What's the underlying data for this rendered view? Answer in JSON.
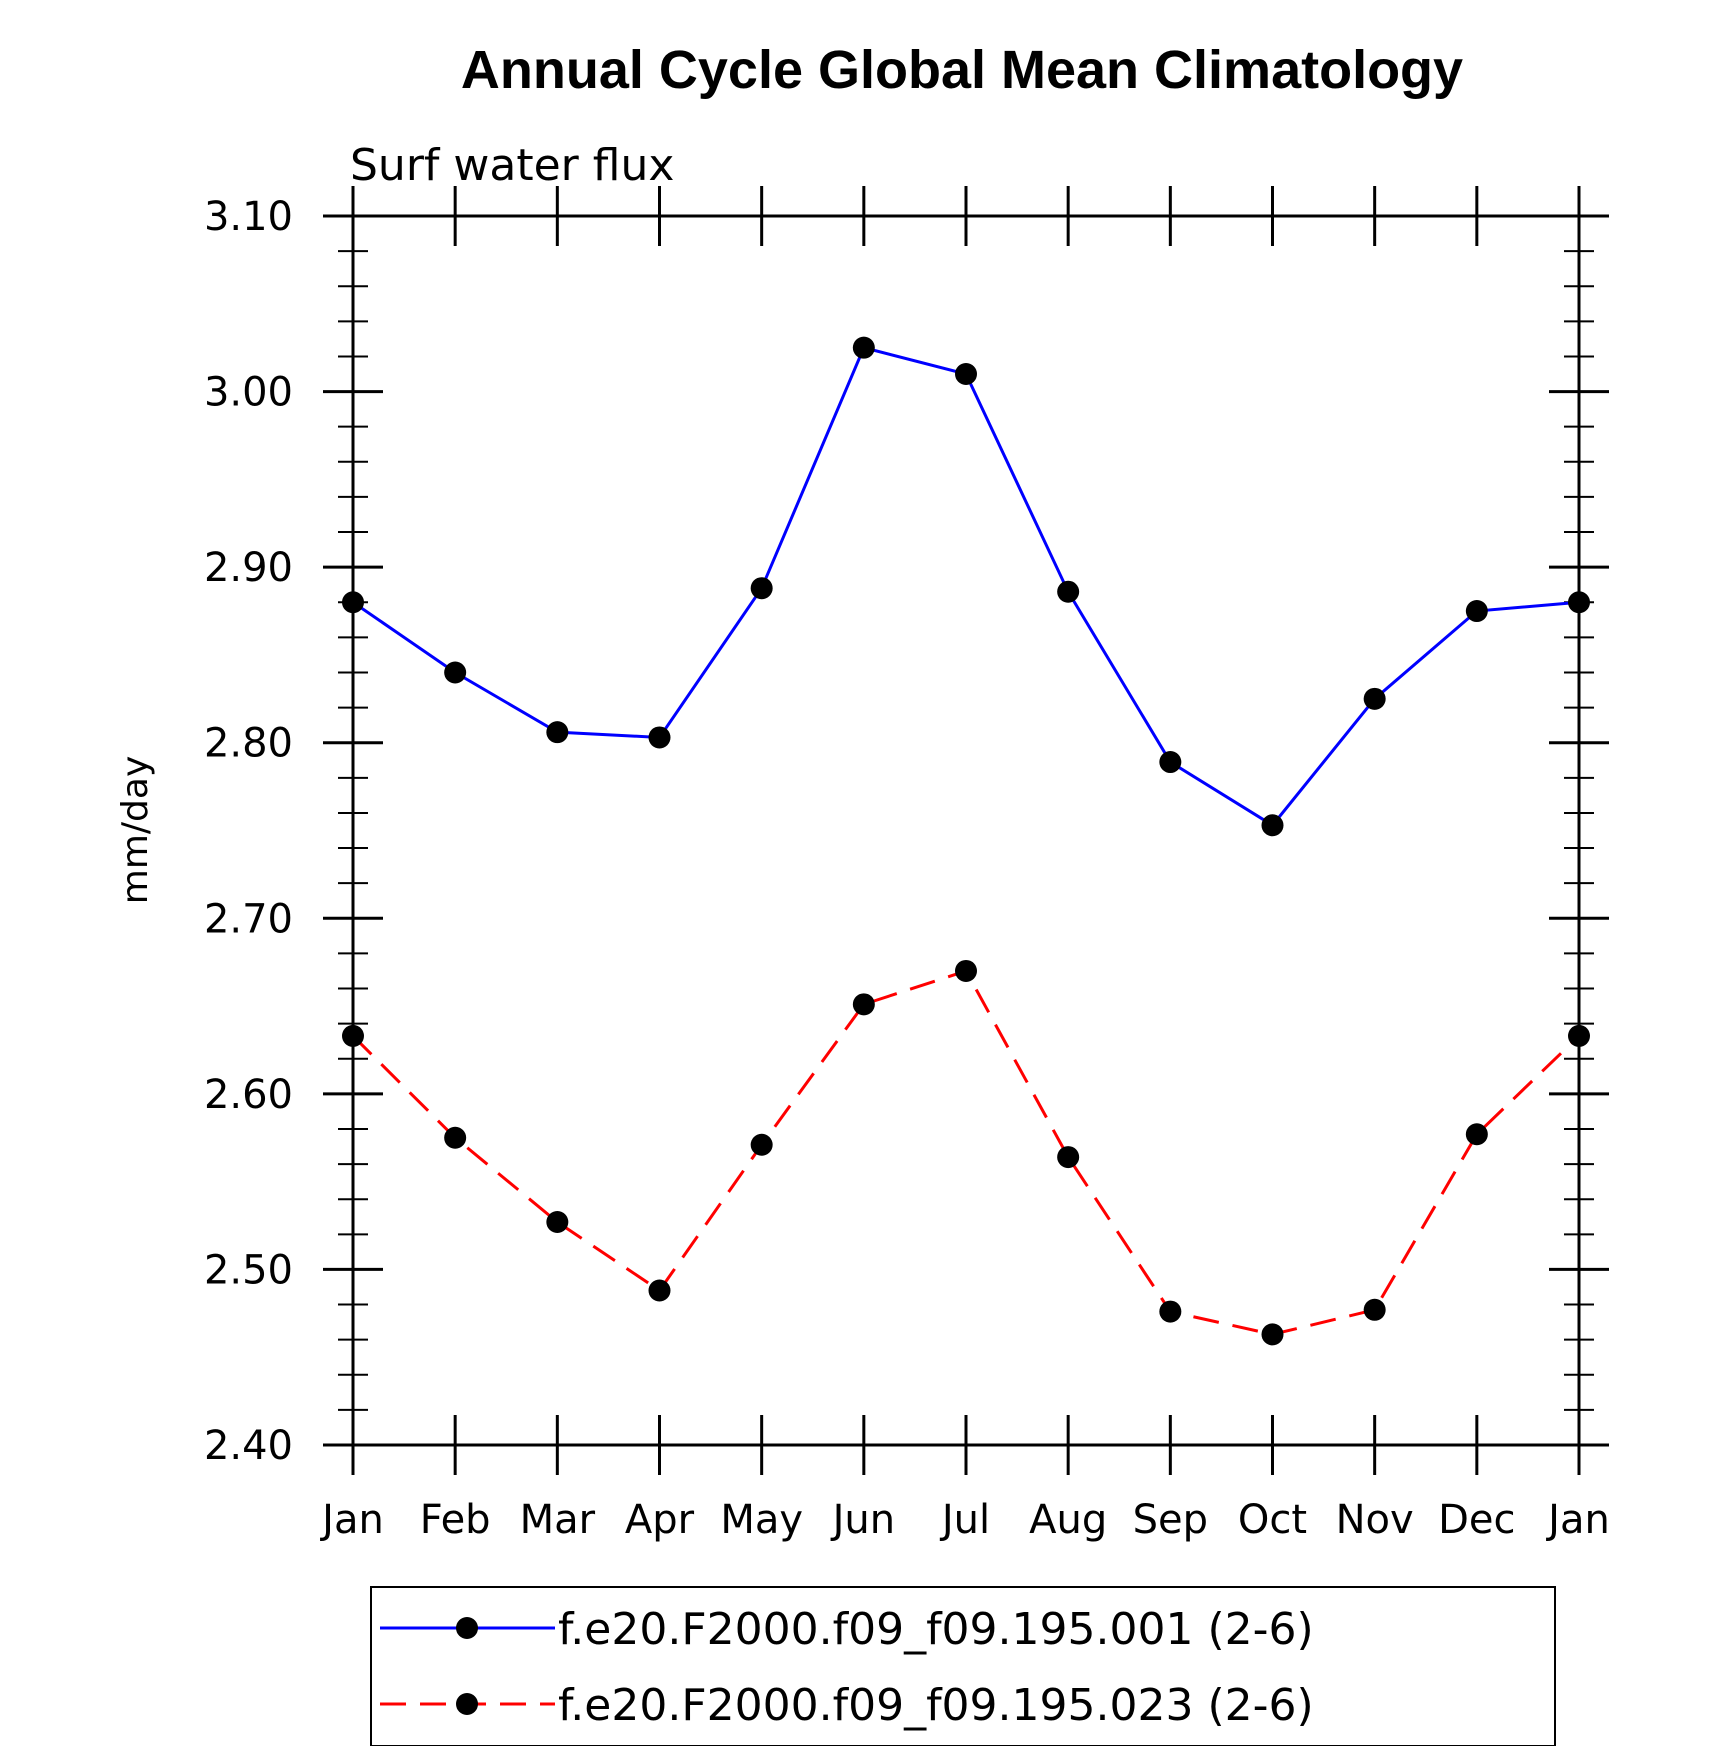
{
  "chart_data": {
    "type": "line",
    "title": "Annual Cycle Global Mean Climatology",
    "subtitle": "Surf water flux",
    "xlabel": "",
    "ylabel": "mm/day",
    "categories": [
      "Jan",
      "Feb",
      "Mar",
      "Apr",
      "May",
      "Jun",
      "Jul",
      "Aug",
      "Sep",
      "Oct",
      "Nov",
      "Dec",
      "Jan"
    ],
    "ylim": [
      2.4,
      3.1
    ],
    "yticks": [
      "2.40",
      "2.50",
      "2.60",
      "2.70",
      "2.80",
      "2.90",
      "3.00",
      "3.10"
    ],
    "ytick_values": [
      2.4,
      2.5,
      2.6,
      2.7,
      2.8,
      2.9,
      3.0,
      3.1
    ],
    "legend_position": "bottom-center",
    "series": [
      {
        "name": "f.e20.F2000.f09_f09.195.001 (2-6)",
        "color": "#0000ff",
        "line_style": "solid",
        "marker": "filled-circle",
        "values": [
          2.88,
          2.84,
          2.806,
          2.803,
          2.888,
          3.025,
          3.01,
          2.886,
          2.789,
          2.753,
          2.825,
          2.875,
          2.88
        ]
      },
      {
        "name": "f.e20.F2000.f09_f09.195.023 (2-6)",
        "color": "#ff0000",
        "line_style": "dashed",
        "marker": "filled-circle",
        "values": [
          2.633,
          2.575,
          2.527,
          2.488,
          2.571,
          2.651,
          2.67,
          2.564,
          2.476,
          2.463,
          2.477,
          2.577,
          2.633
        ]
      }
    ]
  }
}
